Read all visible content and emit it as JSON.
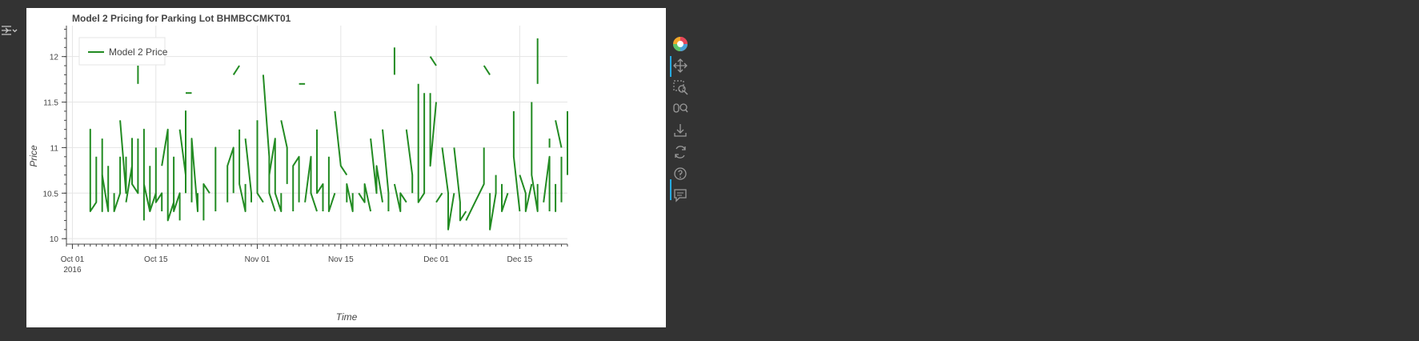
{
  "chart_data": {
    "type": "line",
    "title": "Model 2 Pricing for Parking Lot BHMBCCMKT01",
    "xlabel": "Time",
    "ylabel": "Price",
    "x_range": [
      "2016-09-30",
      "2016-12-23"
    ],
    "ylim": [
      9.94,
      12.34
    ],
    "x_ticks": [
      {
        "date": "2016-10-01",
        "label": "Oct 01",
        "sublabel": "2016"
      },
      {
        "date": "2016-10-15",
        "label": "Oct 15"
      },
      {
        "date": "2016-11-01",
        "label": "Nov 01"
      },
      {
        "date": "2016-11-15",
        "label": "Nov 15"
      },
      {
        "date": "2016-12-01",
        "label": "Dec 01"
      },
      {
        "date": "2016-12-15",
        "label": "Dec 15"
      }
    ],
    "y_ticks": [
      10,
      10.5,
      11,
      11.5,
      12
    ],
    "grid": true,
    "legend_position": "top-left",
    "color": "#228b22",
    "series": [
      {
        "name": "Model 2 Price",
        "segments": [
          [
            [
              "2016-10-04",
              10.3
            ],
            [
              "2016-10-04",
              11.1
            ],
            [
              "2016-10-04",
              10.8
            ],
            [
              "2016-10-04",
              11.2
            ],
            [
              "2016-10-04",
              10.3
            ],
            [
              "2016-10-05",
              10.4
            ],
            [
              "2016-10-05",
              10.5
            ],
            [
              "2016-10-05",
              10.9
            ]
          ],
          [
            [
              "2016-10-06",
              11.1
            ],
            [
              "2016-10-06",
              10.3
            ],
            [
              "2016-10-06",
              10.6
            ]
          ],
          [
            [
              "2016-10-06",
              10.7
            ],
            [
              "2016-10-07",
              10.3
            ],
            [
              "2016-10-07",
              10.6
            ],
            [
              "2016-10-07",
              10.8
            ]
          ],
          [
            [
              "2016-10-08",
              10.5
            ],
            [
              "2016-10-08",
              10.3
            ],
            [
              "2016-10-09",
              10.5
            ],
            [
              "2016-10-09",
              10.9
            ]
          ],
          [
            [
              "2016-10-09",
              11.3
            ],
            [
              "2016-10-10",
              10.5
            ],
            [
              "2016-10-10",
              10.9
            ]
          ],
          [
            [
              "2016-10-10",
              10.4
            ],
            [
              "2016-10-11",
              10.8
            ],
            [
              "2016-10-11",
              11.1
            ],
            [
              "2016-10-11",
              10.6
            ],
            [
              "2016-10-12",
              10.5
            ],
            [
              "2016-10-12",
              11.1
            ]
          ],
          [
            [
              "2016-10-12",
              11.9
            ],
            [
              "2016-10-12",
              11.7
            ]
          ],
          [
            [
              "2016-10-13",
              10.2
            ],
            [
              "2016-10-13",
              11.2
            ],
            [
              "2016-10-13",
              10.6
            ],
            [
              "2016-10-14",
              10.3
            ]
          ],
          [
            [
              "2016-10-14",
              10.8
            ],
            [
              "2016-10-14",
              10.3
            ],
            [
              "2016-10-15",
              10.5
            ]
          ],
          [
            [
              "2016-10-15",
              11.0
            ],
            [
              "2016-10-15",
              10.4
            ],
            [
              "2016-10-16",
              10.5
            ],
            [
              "2016-10-16",
              10.3
            ]
          ],
          [
            [
              "2016-10-16",
              10.8
            ],
            [
              "2016-10-17",
              11.2
            ],
            [
              "2016-10-17",
              10.2
            ],
            [
              "2016-10-18",
              10.4
            ]
          ],
          [
            [
              "2016-10-18",
              10.9
            ],
            [
              "2016-10-18",
              10.3
            ],
            [
              "2016-10-19",
              10.5
            ],
            [
              "2016-10-19",
              10.2
            ]
          ],
          [
            [
              "2016-10-19",
              11.2
            ],
            [
              "2016-10-20",
              10.7
            ],
            [
              "2016-10-20",
              11.4
            ],
            [
              "2016-10-20",
              10.5
            ]
          ],
          [
            [
              "2016-10-20",
              11.6
            ],
            [
              "2016-10-21",
              11.6
            ]
          ],
          [
            [
              "2016-10-21",
              10.4
            ],
            [
              "2016-10-21",
              11.1
            ],
            [
              "2016-10-22",
              10.3
            ],
            [
              "2016-10-22",
              10.5
            ]
          ],
          [
            [
              "2016-10-23",
              10.2
            ],
            [
              "2016-10-23",
              10.6
            ],
            [
              "2016-10-24",
              10.5
            ]
          ],
          [
            [
              "2016-10-25",
              10.3
            ],
            [
              "2016-10-25",
              11.0
            ],
            [
              "2016-10-25",
              10.7
            ]
          ],
          [
            [
              "2016-10-27",
              10.4
            ],
            [
              "2016-10-27",
              10.8
            ],
            [
              "2016-10-28",
              11.0
            ],
            [
              "2016-10-28",
              10.5
            ]
          ],
          [
            [
              "2016-10-27",
              11.4
            ],
            [
              "2016-10-27",
              11.4
            ]
          ],
          [
            [
              "2016-10-28",
              11.8
            ],
            [
              "2016-10-29",
              11.9
            ]
          ],
          [
            [
              "2016-10-29",
              11.2
            ],
            [
              "2016-10-29",
              10.6
            ],
            [
              "2016-10-30",
              10.3
            ],
            [
              "2016-10-30",
              10.6
            ]
          ],
          [
            [
              "2016-10-30",
              11.1
            ],
            [
              "2016-10-31",
              10.5
            ],
            [
              "2016-10-31",
              10.4
            ]
          ],
          [
            [
              "2016-11-01",
              11.3
            ],
            [
              "2016-11-01",
              10.5
            ],
            [
              "2016-11-02",
              10.4
            ]
          ],
          [
            [
              "2016-11-02",
              11.8
            ],
            [
              "2016-11-03",
              10.9
            ],
            [
              "2016-11-03",
              10.5
            ],
            [
              "2016-11-04",
              10.3
            ]
          ],
          [
            [
              "2016-11-03",
              10.7
            ],
            [
              "2016-11-04",
              11.1
            ],
            [
              "2016-11-04",
              10.5
            ],
            [
              "2016-11-05",
              10.3
            ],
            [
              "2016-11-05",
              10.5
            ]
          ],
          [
            [
              "2016-11-05",
              11.3
            ],
            [
              "2016-11-06",
              11.0
            ],
            [
              "2016-11-06",
              10.6
            ]
          ],
          [
            [
              "2016-11-07",
              10.3
            ],
            [
              "2016-11-07",
              10.8
            ],
            [
              "2016-11-08",
              10.9
            ],
            [
              "2016-11-08",
              10.4
            ]
          ],
          [
            [
              "2016-11-08",
              11.7
            ],
            [
              "2016-11-09",
              11.7
            ]
          ],
          [
            [
              "2016-11-09",
              10.4
            ],
            [
              "2016-11-10",
              10.9
            ],
            [
              "2016-11-10",
              10.5
            ],
            [
              "2016-11-11",
              10.3
            ]
          ],
          [
            [
              "2016-11-11",
              11.2
            ],
            [
              "2016-11-11",
              10.5
            ],
            [
              "2016-11-12",
              10.6
            ],
            [
              "2016-11-12",
              10.3
            ]
          ],
          [
            [
              "2016-11-13",
              10.9
            ],
            [
              "2016-11-13",
              10.3
            ],
            [
              "2016-11-14",
              10.5
            ]
          ],
          [
            [
              "2016-11-14",
              11.4
            ],
            [
              "2016-11-15",
              10.8
            ],
            [
              "2016-11-16",
              10.7
            ]
          ],
          [
            [
              "2016-11-16",
              10.4
            ],
            [
              "2016-11-16",
              10.6
            ],
            [
              "2016-11-17",
              10.3
            ],
            [
              "2016-11-17",
              10.5
            ]
          ],
          [
            [
              "2016-11-18",
              11.8
            ],
            [
              "2016-11-18",
              11.8
            ]
          ],
          [
            [
              "2016-11-18",
              10.5
            ],
            [
              "2016-11-19",
              10.4
            ],
            [
              "2016-11-19",
              10.6
            ],
            [
              "2016-11-20",
              10.3
            ]
          ],
          [
            [
              "2016-11-20",
              11.1
            ],
            [
              "2016-11-21",
              10.5
            ],
            [
              "2016-11-21",
              10.8
            ],
            [
              "2016-11-22",
              10.4
            ]
          ],
          [
            [
              "2016-11-22",
              11.2
            ],
            [
              "2016-11-23",
              10.5
            ],
            [
              "2016-11-23",
              10.3
            ]
          ],
          [
            [
              "2016-11-24",
              12.1
            ],
            [
              "2016-11-24",
              11.8
            ]
          ],
          [
            [
              "2016-11-24",
              10.6
            ],
            [
              "2016-11-25",
              10.3
            ],
            [
              "2016-11-25",
              10.5
            ],
            [
              "2016-11-26",
              10.4
            ]
          ],
          [
            [
              "2016-11-26",
              11.2
            ],
            [
              "2016-11-27",
              10.7
            ],
            [
              "2016-11-27",
              10.5
            ]
          ],
          [
            [
              "2016-11-28",
              11.7
            ],
            [
              "2016-11-28",
              10.4
            ],
            [
              "2016-11-29",
              10.5
            ],
            [
              "2016-11-29",
              11.6
            ]
          ],
          [
            [
              "2016-11-30",
              11.6
            ],
            [
              "2016-11-30",
              10.8
            ],
            [
              "2016-12-01",
              11.5
            ]
          ],
          [
            [
              "2016-11-30",
              12.0
            ],
            [
              "2016-12-01",
              11.9
            ]
          ],
          [
            [
              "2016-12-01",
              10.4
            ],
            [
              "2016-12-02",
              10.5
            ]
          ],
          [
            [
              "2016-12-02",
              11.0
            ],
            [
              "2016-12-03",
              10.5
            ],
            [
              "2016-12-03",
              10.1
            ],
            [
              "2016-12-04",
              10.5
            ]
          ],
          [
            [
              "2016-12-04",
              11.0
            ],
            [
              "2016-12-05",
              10.4
            ],
            [
              "2016-12-05",
              10.2
            ],
            [
              "2016-12-06",
              10.3
            ]
          ],
          [
            [
              "2016-12-06",
              10.2
            ],
            [
              "2016-12-09",
              10.6
            ],
            [
              "2016-12-09",
              11.0
            ]
          ],
          [
            [
              "2016-12-09",
              11.9
            ],
            [
              "2016-12-10",
              11.8
            ]
          ],
          [
            [
              "2016-12-10",
              10.5
            ],
            [
              "2016-12-10",
              10.1
            ],
            [
              "2016-12-11",
              10.5
            ],
            [
              "2016-12-11",
              10.7
            ]
          ],
          [
            [
              "2016-12-12",
              10.6
            ],
            [
              "2016-12-12",
              10.3
            ],
            [
              "2016-12-13",
              10.5
            ]
          ],
          [
            [
              "2016-12-14",
              11.4
            ],
            [
              "2016-12-14",
              10.9
            ],
            [
              "2016-12-15",
              10.3
            ]
          ],
          [
            [
              "2016-12-15",
              10.7
            ],
            [
              "2016-12-16",
              10.5
            ],
            [
              "2016-12-16",
              10.3
            ],
            [
              "2016-12-17",
              10.6
            ]
          ],
          [
            [
              "2016-12-17",
              11.5
            ],
            [
              "2016-12-17",
              10.7
            ],
            [
              "2016-12-18",
              10.3
            ],
            [
              "2016-12-18",
              10.6
            ]
          ],
          [
            [
              "2016-12-18",
              12.2
            ],
            [
              "2016-12-18",
              11.7
            ]
          ],
          [
            [
              "2016-12-19",
              10.4
            ],
            [
              "2016-12-20",
              10.9
            ],
            [
              "2016-12-20",
              10.3
            ]
          ],
          [
            [
              "2016-12-20",
              11.1
            ],
            [
              "2016-12-20",
              11.0
            ]
          ],
          [
            [
              "2016-12-21",
              10.6
            ],
            [
              "2016-12-21",
              10.3
            ],
            [
              "2016-12-21",
              10.5
            ]
          ],
          [
            [
              "2016-12-21",
              11.3
            ],
            [
              "2016-12-22",
              11.0
            ]
          ],
          [
            [
              "2016-12-22",
              11.4
            ],
            [
              "2016-12-22",
              11.4
            ]
          ],
          [
            [
              "2016-12-22",
              10.9
            ],
            [
              "2016-12-22",
              10.4
            ]
          ],
          [
            [
              "2016-12-23",
              11.4
            ],
            [
              "2016-12-23",
              10.7
            ]
          ]
        ]
      }
    ]
  },
  "toolbar": {
    "tools": [
      "bokeh-logo-icon",
      "pan-icon",
      "box-zoom-icon",
      "wheel-zoom-icon",
      "save-icon",
      "reset-icon",
      "help-icon",
      "hover-icon"
    ]
  }
}
